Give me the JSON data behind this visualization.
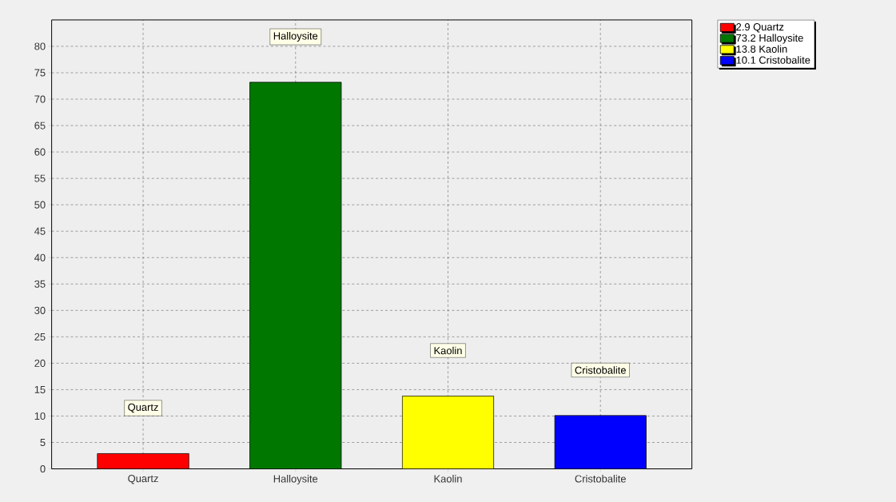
{
  "chart_data": {
    "type": "bar",
    "stacked": true,
    "categories": [
      "Quartz",
      "Halloysite",
      "Kaolin",
      "Cristobalite"
    ],
    "series": [
      {
        "name": "2.9 Quartz",
        "color": "#ff0000",
        "values": [
          2.9,
          null,
          null,
          null
        ]
      },
      {
        "name": "73.2 Halloysite",
        "color": "#007800",
        "values": [
          null,
          73.2,
          null,
          null
        ]
      },
      {
        "name": "13.8 Kaolin",
        "color": "#ffff00",
        "values": [
          null,
          null,
          13.8,
          null
        ]
      },
      {
        "name": "10.1 Cristobalite",
        "color": "#0000ff",
        "values": [
          null,
          null,
          null,
          10.1
        ]
      }
    ],
    "ylim": [
      0,
      85
    ],
    "yticks": [
      0,
      5,
      10,
      15,
      20,
      25,
      30,
      35,
      40,
      45,
      50,
      55,
      60,
      65,
      70,
      75,
      80
    ],
    "grid": true,
    "legend": "top right",
    "annotations": [
      "Quartz",
      "Halloysite",
      "Kaolin",
      "Cristobalite"
    ]
  }
}
